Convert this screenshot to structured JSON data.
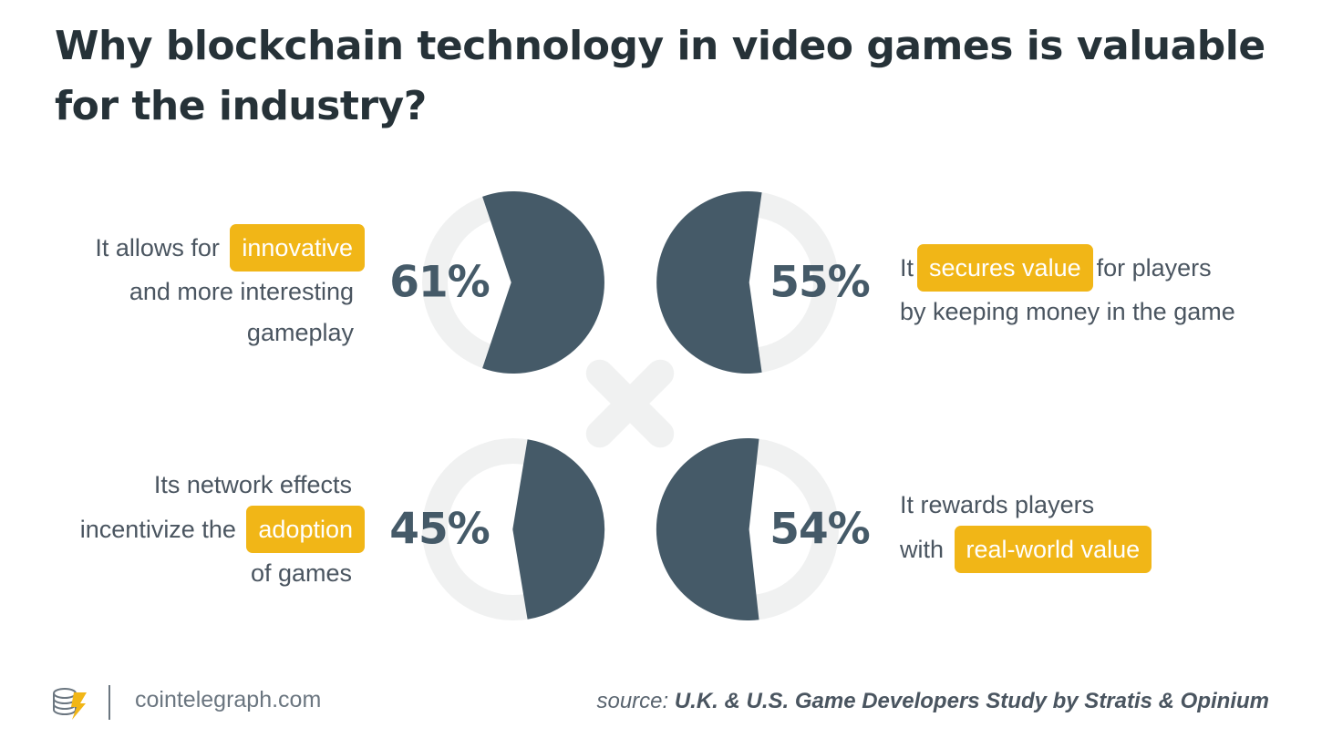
{
  "title_lines": [
    "Why blockchain technology in video games is valuable",
    "for the industry?"
  ],
  "colors": {
    "filled": "#455a68",
    "track": "#f0f1f1",
    "highlight": "#f1b617",
    "title": "#263238"
  },
  "chart_data": {
    "type": "pie",
    "title": "Why blockchain technology in video games is valuable for the industry?",
    "source": "U.K. & U.S. Game Developers Study by Stratis & Opinium",
    "series": [
      {
        "label": "61%",
        "value": 61,
        "orientation": "left"
      },
      {
        "label": "55%",
        "value": 55,
        "orientation": "right"
      },
      {
        "label": "45%",
        "value": 45,
        "orientation": "left"
      },
      {
        "label": "54%",
        "value": 54,
        "orientation": "right"
      }
    ]
  },
  "descriptions": {
    "d1": {
      "l1_pre": "It allows for",
      "l1_hl": "innovative",
      "l2": "and more interesting",
      "l3": "gameplay"
    },
    "d2": {
      "l1_pre": "It",
      "l1_hl": "secures value",
      "l1_post": "for players",
      "l2": "by keeping money in the game"
    },
    "d3": {
      "l1": "Its network effects",
      "l2_pre": "incentivize the",
      "l2_hl": "adoption",
      "l3": "of games"
    },
    "d4": {
      "l1": "It rewards players",
      "l2_pre": "with",
      "l2_hl": "real-world value"
    }
  },
  "footer": {
    "site": "cointelegraph.com",
    "source_prefix": "source:",
    "source_text": "U.K. & U.S. Game Developers Study by Stratis & Opinium"
  }
}
